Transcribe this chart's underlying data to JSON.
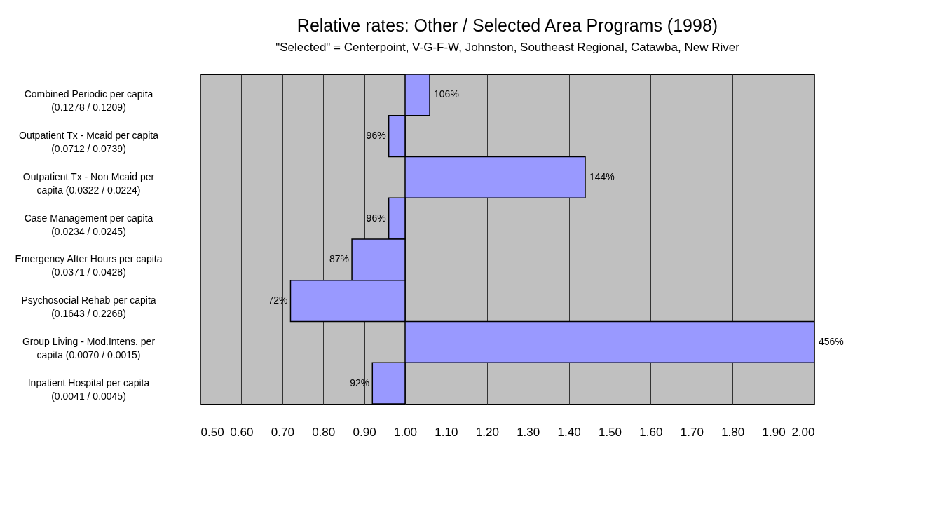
{
  "chart_data": {
    "type": "bar",
    "orientation": "horizontal",
    "title": "Relative rates: Other / Selected Area Programs (1998)",
    "subtitle": "\"Selected\" = Centerpoint, V-G-F-W, Johnston, Southeast Regional, Catawba, New River",
    "categories": [
      "Combined Periodic per capita (0.1278 / 0.1209)",
      "Outpatient Tx - Mcaid per capita (0.0712 / 0.0739)",
      "Outpatient Tx - Non Mcaid per capita (0.0322 / 0.0224)",
      "Case Management per capita (0.0234 / 0.0245)",
      "Emergency After Hours per capita (0.0371 / 0.0428)",
      "Psychosocial Rehab per capita (0.1643 / 0.2268)",
      "Group Living - Mod.Intens. per capita (0.0070 / 0.0015)",
      "Inpatient Hospital per capita (0.0041 / 0.0045)"
    ],
    "base": [
      1,
      1,
      1,
      1,
      1,
      1,
      1,
      1
    ],
    "values": [
      0.06,
      -0.04,
      0.44,
      -0.04,
      -0.13,
      -0.28,
      3.56,
      -0.08
    ],
    "value_labels": [
      "106%",
      "96%",
      "144%",
      "96%",
      "87%",
      "72%",
      "456%",
      "92%"
    ],
    "color": "#9999ff",
    "xlim": [
      0.5,
      2.0
    ],
    "xticks": [
      {
        "value": 0.5,
        "label": "0.50"
      },
      {
        "value": 0.6,
        "label": "0.60"
      },
      {
        "value": 0.7,
        "label": "0.70"
      },
      {
        "value": 0.8,
        "label": "0.80"
      },
      {
        "value": 0.9,
        "label": "0.90"
      },
      {
        "value": 1.0,
        "label": "1.00"
      },
      {
        "value": 1.1,
        "label": "1.10"
      },
      {
        "value": 1.2,
        "label": "1.20"
      },
      {
        "value": 1.3,
        "label": "1.30"
      },
      {
        "value": 1.4,
        "label": "1.40"
      },
      {
        "value": 1.5,
        "label": "1.50"
      },
      {
        "value": 1.6,
        "label": "1.60"
      },
      {
        "value": 1.7,
        "label": "1.70"
      },
      {
        "value": 1.8,
        "label": "1.80"
      },
      {
        "value": 1.9,
        "label": "1.90"
      },
      {
        "value": 2.0,
        "label": "2.00"
      }
    ],
    "grid": "x"
  }
}
